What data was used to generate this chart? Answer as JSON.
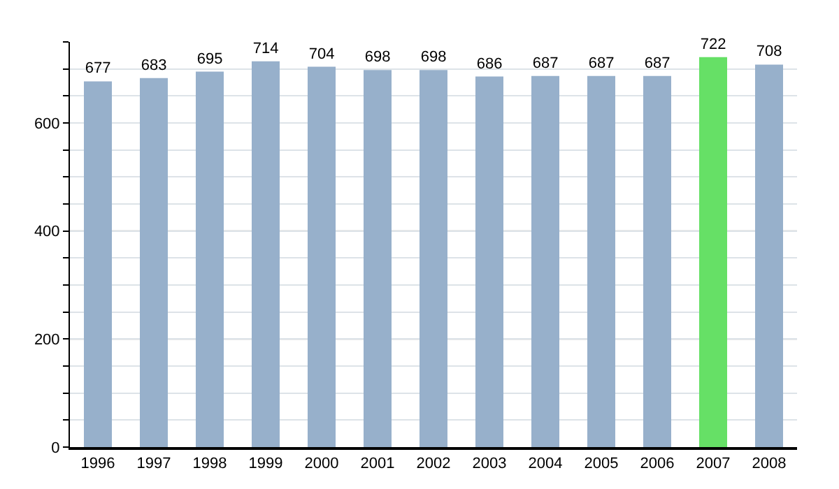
{
  "chart_data": {
    "type": "bar",
    "categories": [
      "1996",
      "1997",
      "1998",
      "1999",
      "2000",
      "2001",
      "2002",
      "2003",
      "2004",
      "2005",
      "2006",
      "2007",
      "2008"
    ],
    "values": [
      677,
      683,
      695,
      714,
      704,
      698,
      698,
      686,
      687,
      687,
      687,
      722,
      708
    ],
    "colors": [
      "#97b0cb",
      "#97b0cb",
      "#97b0cb",
      "#97b0cb",
      "#97b0cb",
      "#97b0cb",
      "#97b0cb",
      "#97b0cb",
      "#97b0cb",
      "#97b0cb",
      "#97b0cb",
      "#66e066",
      "#97b0cb"
    ],
    "data_labels": true,
    "ylim": [
      0,
      750
    ],
    "yticks": [
      0,
      {
        "value": 50,
        "label": null
      },
      {
        "value": 100,
        "label": null
      },
      {
        "value": 150,
        "label": null
      },
      200,
      {
        "value": 250,
        "label": null
      },
      {
        "value": 300,
        "label": null
      },
      {
        "value": 350,
        "label": null
      },
      400,
      {
        "value": 450,
        "label": null
      },
      {
        "value": 500,
        "label": null
      },
      {
        "value": 550,
        "label": null
      },
      600,
      {
        "value": 650,
        "label": null
      },
      {
        "value": 700,
        "label": null
      },
      {
        "value": 750,
        "label": null
      }
    ],
    "grid": "y"
  }
}
